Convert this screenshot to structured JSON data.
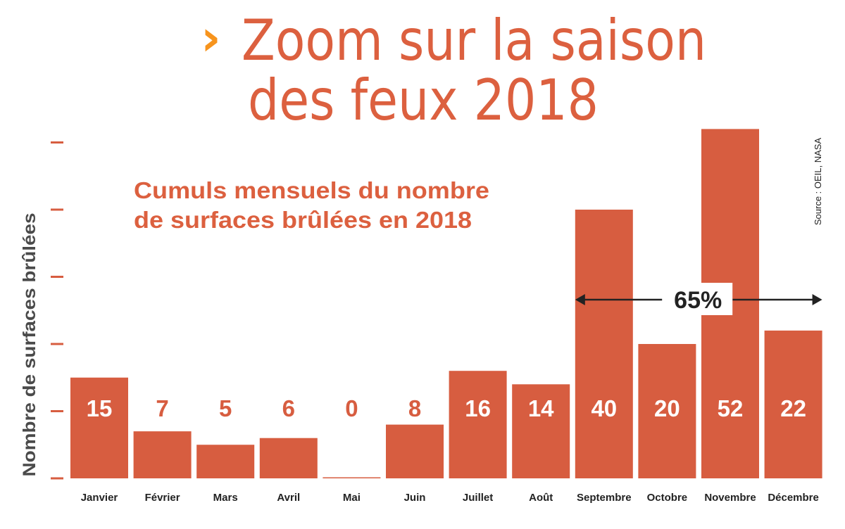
{
  "chart_data": {
    "type": "bar",
    "title_line1": "Zoom sur la saison",
    "title_line2": "des feux 2018",
    "subtitle_line1": "Cumuls mensuels du nombre",
    "subtitle_line2": "de surfaces brûlées en 2018",
    "ylabel": "Nombre de surfaces brûlées",
    "source": "Source : OEIL, NASA",
    "categories": [
      "Janvier",
      "Février",
      "Mars",
      "Avril",
      "Mai",
      "Juin",
      "Juillet",
      "Août",
      "Septembre",
      "Octobre",
      "Novembre",
      "Décembre"
    ],
    "values": [
      15,
      7,
      5,
      6,
      0,
      8,
      16,
      14,
      40,
      20,
      52,
      22
    ],
    "ylim": [
      0,
      50
    ],
    "yticks": [
      0,
      10,
      20,
      30,
      40,
      50
    ],
    "ytick_labels_shown": false,
    "grid": false,
    "annotation": {
      "label": "65%",
      "from": "Septembre",
      "to": "Décembre"
    },
    "colors": {
      "bar": "#d75d40",
      "title": "#dc603f",
      "chevron": "#f7941d",
      "text": "#222222"
    }
  }
}
